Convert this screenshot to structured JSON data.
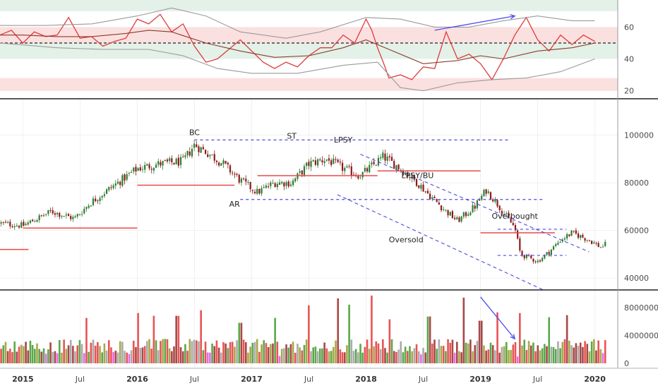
{
  "chart_data": [
    {
      "type": "line",
      "panel": "rsi",
      "ylim": [
        15,
        77
      ],
      "ticks": [
        20,
        40,
        60
      ],
      "zones": [
        {
          "from": 70,
          "to": 77,
          "color": "#e3f1e8"
        },
        {
          "from": 50,
          "to": 60,
          "color": "#fbe0e0"
        },
        {
          "from": 40,
          "to": 50,
          "color": "#e3f1e8"
        },
        {
          "from": 20,
          "to": 28,
          "color": "#fbe0e0"
        }
      ],
      "midline": 50,
      "x_range": [
        2014.8,
        2020.2
      ],
      "series": [
        {
          "role": "rsi",
          "color": "#e03a3a",
          "points": [
            [
              2014.8,
              55
            ],
            [
              2014.9,
              58
            ],
            [
              2015.0,
              50
            ],
            [
              2015.1,
              57
            ],
            [
              2015.2,
              54
            ],
            [
              2015.3,
              55
            ],
            [
              2015.4,
              66
            ],
            [
              2015.5,
              53
            ],
            [
              2015.6,
              54
            ],
            [
              2015.7,
              48
            ],
            [
              2015.8,
              51
            ],
            [
              2015.9,
              53
            ],
            [
              2016.0,
              65
            ],
            [
              2016.1,
              62
            ],
            [
              2016.2,
              68
            ],
            [
              2016.3,
              57
            ],
            [
              2016.4,
              62
            ],
            [
              2016.5,
              48
            ],
            [
              2016.6,
              38
            ],
            [
              2016.7,
              40
            ],
            [
              2016.8,
              46
            ],
            [
              2016.9,
              52
            ],
            [
              2017.0,
              45
            ],
            [
              2017.1,
              38
            ],
            [
              2017.2,
              34
            ],
            [
              2017.3,
              38
            ],
            [
              2017.4,
              35
            ],
            [
              2017.5,
              42
            ],
            [
              2017.6,
              47
            ],
            [
              2017.7,
              47
            ],
            [
              2017.8,
              55
            ],
            [
              2017.9,
              50
            ],
            [
              2018.0,
              65
            ],
            [
              2018.05,
              58
            ],
            [
              2018.1,
              47
            ],
            [
              2018.15,
              38
            ],
            [
              2018.2,
              28
            ],
            [
              2018.3,
              30
            ],
            [
              2018.4,
              27
            ],
            [
              2018.5,
              35
            ],
            [
              2018.6,
              34
            ],
            [
              2018.7,
              57
            ],
            [
              2018.8,
              40
            ],
            [
              2018.9,
              43
            ],
            [
              2019.0,
              37
            ],
            [
              2019.1,
              27
            ],
            [
              2019.2,
              40
            ],
            [
              2019.3,
              55
            ],
            [
              2019.4,
              66
            ],
            [
              2019.5,
              52
            ],
            [
              2019.6,
              45
            ],
            [
              2019.7,
              55
            ],
            [
              2019.8,
              49
            ],
            [
              2019.9,
              55
            ],
            [
              2020.0,
              51
            ]
          ]
        },
        {
          "role": "rsi-ma",
          "color": "#8b3a2a",
          "points": [
            [
              2014.8,
              55
            ],
            [
              2015.0,
              55
            ],
            [
              2015.3,
              54
            ],
            [
              2015.6,
              54
            ],
            [
              2015.9,
              56
            ],
            [
              2016.1,
              58
            ],
            [
              2016.3,
              57
            ],
            [
              2016.6,
              50
            ],
            [
              2016.9,
              45
            ],
            [
              2017.2,
              41
            ],
            [
              2017.5,
              42
            ],
            [
              2017.8,
              47
            ],
            [
              2018.0,
              52
            ],
            [
              2018.2,
              46
            ],
            [
              2018.5,
              37
            ],
            [
              2018.8,
              39
            ],
            [
              2019.0,
              42
            ],
            [
              2019.2,
              40
            ],
            [
              2019.5,
              45
            ],
            [
              2019.8,
              47
            ],
            [
              2020.0,
              50
            ]
          ]
        },
        {
          "role": "band-upper",
          "color": "#9a9a9a",
          "points": [
            [
              2014.8,
              61
            ],
            [
              2015.2,
              61
            ],
            [
              2015.6,
              62
            ],
            [
              2016.0,
              67
            ],
            [
              2016.3,
              72
            ],
            [
              2016.6,
              67
            ],
            [
              2016.9,
              57
            ],
            [
              2017.3,
              53
            ],
            [
              2017.6,
              57
            ],
            [
              2018.0,
              66
            ],
            [
              2018.3,
              65
            ],
            [
              2018.6,
              60
            ],
            [
              2018.9,
              60
            ],
            [
              2019.2,
              64
            ],
            [
              2019.5,
              67
            ],
            [
              2019.8,
              64
            ],
            [
              2020.0,
              64
            ]
          ]
        },
        {
          "role": "band-lower",
          "color": "#9a9a9a",
          "points": [
            [
              2014.8,
              50
            ],
            [
              2015.3,
              47
            ],
            [
              2015.7,
              46
            ],
            [
              2016.1,
              46
            ],
            [
              2016.4,
              42
            ],
            [
              2016.7,
              34
            ],
            [
              2017.0,
              31
            ],
            [
              2017.4,
              31
            ],
            [
              2017.8,
              36
            ],
            [
              2018.1,
              38
            ],
            [
              2018.3,
              22
            ],
            [
              2018.5,
              20
            ],
            [
              2018.8,
              25
            ],
            [
              2019.1,
              27
            ],
            [
              2019.4,
              28
            ],
            [
              2019.7,
              32
            ],
            [
              2020.0,
              40
            ]
          ]
        }
      ],
      "annotations": [
        {
          "type": "arrow",
          "from": [
            2018.6,
            58
          ],
          "to": [
            2019.3,
            67
          ],
          "color": "#4c4cf0"
        }
      ]
    },
    {
      "type": "candlestick",
      "panel": "price",
      "ylim": [
        35000,
        115000
      ],
      "ticks": [
        40000,
        60000,
        80000,
        100000
      ],
      "up_color": "#2e7d32",
      "down_color": "#8b1a1a",
      "x_range": [
        2014.8,
        2020.2
      ],
      "close_path": [
        [
          2014.8,
          63000
        ],
        [
          2015.0,
          62000
        ],
        [
          2015.25,
          68000
        ],
        [
          2015.45,
          65000
        ],
        [
          2015.6,
          72000
        ],
        [
          2015.8,
          79000
        ],
        [
          2016.0,
          86000
        ],
        [
          2016.2,
          88000
        ],
        [
          2016.4,
          89000
        ],
        [
          2016.5,
          96000
        ],
        [
          2016.6,
          93000
        ],
        [
          2016.75,
          88000
        ],
        [
          2016.9,
          81000
        ],
        [
          2017.05,
          76000
        ],
        [
          2017.2,
          80000
        ],
        [
          2017.35,
          80000
        ],
        [
          2017.5,
          88000
        ],
        [
          2017.65,
          90000
        ],
        [
          2017.8,
          86000
        ],
        [
          2017.95,
          83000
        ],
        [
          2018.05,
          87000
        ],
        [
          2018.15,
          91000
        ],
        [
          2018.3,
          86000
        ],
        [
          2018.45,
          80000
        ],
        [
          2018.55,
          75000
        ],
        [
          2018.7,
          68000
        ],
        [
          2018.8,
          64000
        ],
        [
          2018.95,
          70000
        ],
        [
          2019.05,
          77000
        ],
        [
          2019.15,
          71000
        ],
        [
          2019.3,
          61000
        ],
        [
          2019.35,
          50000
        ],
        [
          2019.5,
          47000
        ],
        [
          2019.6,
          51000
        ],
        [
          2019.7,
          56000
        ],
        [
          2019.8,
          59000
        ],
        [
          2019.95,
          56000
        ],
        [
          2020.05,
          53000
        ],
        [
          2020.2,
          57000
        ]
      ],
      "levels": [
        {
          "x1": 2014.8,
          "x2": 2015.05,
          "y": 52000,
          "color": "#e84a4a",
          "style": "solid"
        },
        {
          "x1": 2015.0,
          "x2": 2016.0,
          "y": 61000,
          "color": "#e84a4a",
          "style": "solid"
        },
        {
          "x1": 2016.0,
          "x2": 2016.85,
          "y": 79000,
          "color": "#e84a4a",
          "style": "solid"
        },
        {
          "x1": 2017.05,
          "x2": 2018.1,
          "y": 83000,
          "color": "#e84a4a",
          "style": "solid"
        },
        {
          "x1": 2018.1,
          "x2": 2019.0,
          "y": 85000,
          "color": "#e84a4a",
          "style": "solid"
        },
        {
          "x1": 2019.0,
          "x2": 2019.65,
          "y": 59000,
          "color": "#e84a4a",
          "style": "solid"
        },
        {
          "x1": 2016.5,
          "x2": 2019.25,
          "y": 98000,
          "color": "#4a4ae0",
          "style": "dashed"
        },
        {
          "x1": 2016.9,
          "x2": 2019.55,
          "y": 73000,
          "color": "#4a4ae0",
          "style": "dashed"
        },
        {
          "x1": 2019.15,
          "x2": 2019.75,
          "y": 60500,
          "color": "#4a4ae0",
          "style": "dashed"
        },
        {
          "x1": 2019.15,
          "x2": 2019.75,
          "y": 49500,
          "color": "#4a4ae0",
          "style": "dashed"
        }
      ],
      "trendlines": [
        {
          "from": [
            2017.95,
            92000
          ],
          "to": [
            2019.95,
            51000
          ],
          "color": "#4a4ae0"
        },
        {
          "from": [
            2017.75,
            75000
          ],
          "to": [
            2019.55,
            35000
          ],
          "color": "#4a4ae0"
        }
      ],
      "labels": [
        {
          "text": "BC",
          "x": 2016.5,
          "y": 100000
        },
        {
          "text": "AR",
          "x": 2016.85,
          "y": 70000
        },
        {
          "text": "ST",
          "x": 2017.35,
          "y": 98500
        },
        {
          "text": "LPSY",
          "x": 2017.8,
          "y": 97000
        },
        {
          "text": "LPSY/BU",
          "x": 2018.45,
          "y": 82000
        },
        {
          "text": "Oversold",
          "x": 2018.35,
          "y": 55000
        },
        {
          "text": "Overbought",
          "x": 2019.3,
          "y": 65000
        }
      ]
    },
    {
      "type": "bar",
      "panel": "volume",
      "ylim": [
        0,
        10000000
      ],
      "ticks": [
        0,
        4000000,
        8000000
      ],
      "colors": [
        "#aaaaaa",
        "#a8a84a",
        "#a84848",
        "#e85454",
        "#5aa84a",
        "#e66ce6"
      ],
      "spikes": [
        [
          2015.55,
          6500000
        ],
        [
          2016.0,
          7200000
        ],
        [
          2016.15,
          6800000
        ],
        [
          2016.35,
          6800000
        ],
        [
          2016.55,
          7600000
        ],
        [
          2016.9,
          5800000
        ],
        [
          2017.2,
          6500000
        ],
        [
          2017.5,
          8300000
        ],
        [
          2017.75,
          9300000
        ],
        [
          2017.85,
          8400000
        ],
        [
          2018.05,
          9700000
        ],
        [
          2018.2,
          6300000
        ],
        [
          2018.55,
          6700000
        ],
        [
          2018.85,
          9400000
        ],
        [
          2019.0,
          6100000
        ],
        [
          2019.15,
          7300000
        ],
        [
          2019.35,
          7200000
        ],
        [
          2019.6,
          6600000
        ],
        [
          2019.75,
          6900000
        ]
      ],
      "annotations": [
        {
          "type": "arrow",
          "from": [
            2019.0,
            9500000
          ],
          "to": [
            2019.3,
            3500000
          ],
          "color": "#4c4cf0"
        }
      ]
    }
  ],
  "x_axis": {
    "labels": [
      {
        "text": "2015",
        "x": 2015.0,
        "year": true
      },
      {
        "text": "Jul",
        "x": 2015.5
      },
      {
        "text": "2016",
        "x": 2016.0,
        "year": true
      },
      {
        "text": "Jul",
        "x": 2016.5
      },
      {
        "text": "2017",
        "x": 2017.0,
        "year": true
      },
      {
        "text": "Jul",
        "x": 2017.5
      },
      {
        "text": "2018",
        "x": 2018.0,
        "year": true
      },
      {
        "text": "Jul",
        "x": 2018.5
      },
      {
        "text": "2019",
        "x": 2019.0,
        "year": true
      },
      {
        "text": "Jul",
        "x": 2019.5
      },
      {
        "text": "2020",
        "x": 2020.0,
        "year": true
      }
    ]
  },
  "y_axis_labels": {
    "rsi": [
      "20",
      "40",
      "60"
    ],
    "price": [
      "40000",
      "60000",
      "80000",
      "100000"
    ],
    "volume": [
      "0",
      "4000000",
      "8000000"
    ]
  }
}
